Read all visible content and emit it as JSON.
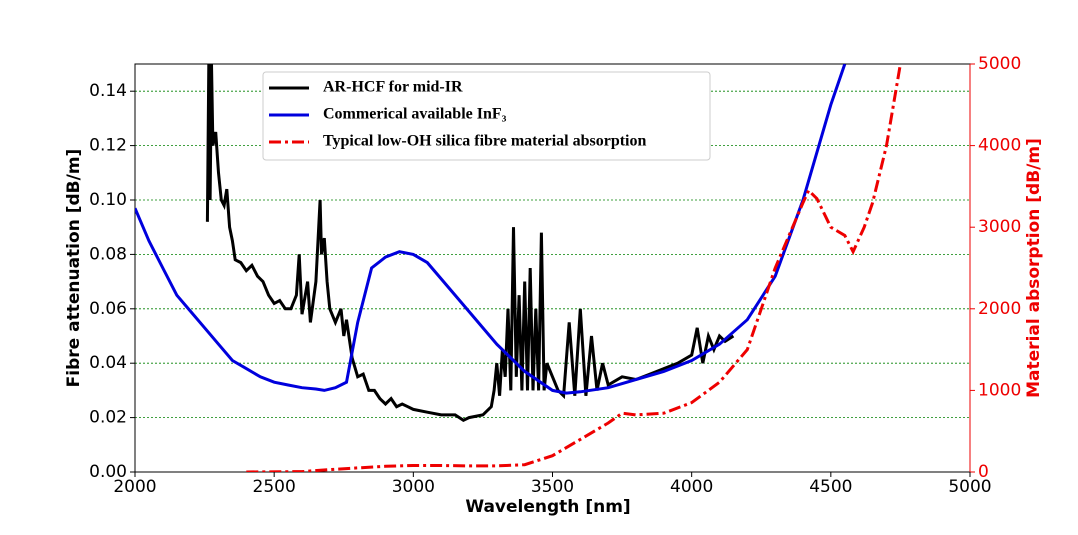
{
  "chart_data": {
    "type": "line",
    "xlabel": "Wavelength [nm]",
    "ylabel": "Fibre attenuation [dB/m]",
    "y2label": "Material absorption [dB/m]",
    "xlim": [
      2000,
      5000
    ],
    "xticks": [
      2000,
      2500,
      3000,
      3500,
      4000,
      4500,
      5000
    ],
    "ylim": [
      0,
      0.15
    ],
    "yticks": [
      {
        "value": 0,
        "label": "0.00"
      },
      {
        "value": 0.02,
        "label": "0.02"
      },
      {
        "value": 0.04,
        "label": "0.04"
      },
      {
        "value": 0.06,
        "label": "0.06"
      },
      {
        "value": 0.08,
        "label": "0.08"
      },
      {
        "value": 0.1,
        "label": "0.10"
      },
      {
        "value": 0.12,
        "label": "0.12"
      },
      {
        "value": 0.14,
        "label": "0.14"
      }
    ],
    "y2lim": [
      0,
      5000
    ],
    "y2ticks": [
      0,
      1000,
      2000,
      3000,
      4000,
      5000
    ],
    "grid": true,
    "legend": "upper center",
    "series": [
      {
        "name": "AR-HCF for mid-IR",
        "color": "#000000",
        "style": "solid",
        "x": [
          2260,
          2265,
          2270,
          2275,
          2280,
          2290,
          2300,
          2310,
          2320,
          2330,
          2340,
          2350,
          2360,
          2380,
          2400,
          2420,
          2440,
          2460,
          2480,
          2500,
          2520,
          2540,
          2560,
          2580,
          2590,
          2600,
          2620,
          2630,
          2650,
          2660,
          2665,
          2670,
          2680,
          2690,
          2700,
          2720,
          2740,
          2750,
          2760,
          2780,
          2800,
          2820,
          2840,
          2860,
          2880,
          2900,
          2920,
          2940,
          2960,
          2980,
          3000,
          3050,
          3100,
          3150,
          3180,
          3200,
          3250,
          3280,
          3290,
          3300,
          3310,
          3320,
          3330,
          3340,
          3350,
          3360,
          3370,
          3380,
          3390,
          3400,
          3410,
          3420,
          3430,
          3440,
          3450,
          3460,
          3470,
          3480,
          3500,
          3520,
          3540,
          3560,
          3580,
          3600,
          3620,
          3640,
          3660,
          3680,
          3700,
          3750,
          3800,
          3850,
          3900,
          3950,
          4000,
          4020,
          4040,
          4060,
          4080,
          4100,
          4120,
          4150
        ],
        "values": [
          0.092,
          0.15,
          0.1,
          0.15,
          0.12,
          0.125,
          0.11,
          0.1,
          0.098,
          0.104,
          0.09,
          0.085,
          0.078,
          0.077,
          0.074,
          0.076,
          0.072,
          0.07,
          0.065,
          0.062,
          0.063,
          0.06,
          0.06,
          0.065,
          0.08,
          0.058,
          0.07,
          0.055,
          0.07,
          0.09,
          0.1,
          0.08,
          0.086,
          0.07,
          0.06,
          0.055,
          0.06,
          0.05,
          0.056,
          0.042,
          0.035,
          0.036,
          0.03,
          0.03,
          0.027,
          0.025,
          0.027,
          0.024,
          0.025,
          0.024,
          0.023,
          0.022,
          0.021,
          0.021,
          0.019,
          0.02,
          0.021,
          0.024,
          0.03,
          0.04,
          0.028,
          0.045,
          0.035,
          0.06,
          0.03,
          0.09,
          0.035,
          0.065,
          0.03,
          0.07,
          0.03,
          0.075,
          0.03,
          0.06,
          0.03,
          0.088,
          0.03,
          0.04,
          0.035,
          0.03,
          0.028,
          0.055,
          0.028,
          0.06,
          0.028,
          0.05,
          0.03,
          0.04,
          0.032,
          0.035,
          0.034,
          0.036,
          0.038,
          0.04,
          0.043,
          0.053,
          0.04,
          0.05,
          0.045,
          0.05,
          0.048,
          0.05
        ]
      },
      {
        "name": "Commerical available InF₃",
        "color": "#0000dd",
        "style": "solid",
        "x": [
          2000,
          2050,
          2100,
          2150,
          2200,
          2250,
          2300,
          2350,
          2400,
          2450,
          2500,
          2550,
          2600,
          2650,
          2680,
          2720,
          2760,
          2800,
          2850,
          2900,
          2950,
          3000,
          3050,
          3100,
          3200,
          3300,
          3400,
          3500,
          3550,
          3600,
          3700,
          3800,
          3900,
          4000,
          4100,
          4200,
          4300,
          4400,
          4500,
          4550
        ],
        "values": [
          0.097,
          0.085,
          0.075,
          0.065,
          0.059,
          0.053,
          0.047,
          0.041,
          0.038,
          0.035,
          0.033,
          0.032,
          0.031,
          0.0305,
          0.03,
          0.031,
          0.033,
          0.055,
          0.075,
          0.079,
          0.081,
          0.08,
          0.077,
          0.071,
          0.059,
          0.047,
          0.037,
          0.03,
          0.029,
          0.0295,
          0.031,
          0.034,
          0.037,
          0.041,
          0.047,
          0.056,
          0.072,
          0.1,
          0.135,
          0.15
        ]
      },
      {
        "name": "Typical low-OH silica fibre material absorption",
        "color": "#ee0000",
        "style": "dashdot",
        "axis": "y2",
        "x": [
          2400,
          2600,
          2700,
          2800,
          2900,
          3000,
          3100,
          3200,
          3300,
          3400,
          3500,
          3600,
          3700,
          3750,
          3800,
          3900,
          4000,
          4100,
          4200,
          4250,
          4300,
          4350,
          4400,
          4420,
          4450,
          4500,
          4550,
          4580,
          4620,
          4650,
          4700,
          4750
        ],
        "values": [
          0,
          5,
          30,
          50,
          70,
          80,
          80,
          75,
          75,
          90,
          200,
          400,
          600,
          720,
          700,
          720,
          850,
          1100,
          1500,
          2000,
          2500,
          2900,
          3300,
          3450,
          3350,
          3000,
          2900,
          2700,
          3000,
          3300,
          4000,
          5000
        ]
      }
    ]
  }
}
